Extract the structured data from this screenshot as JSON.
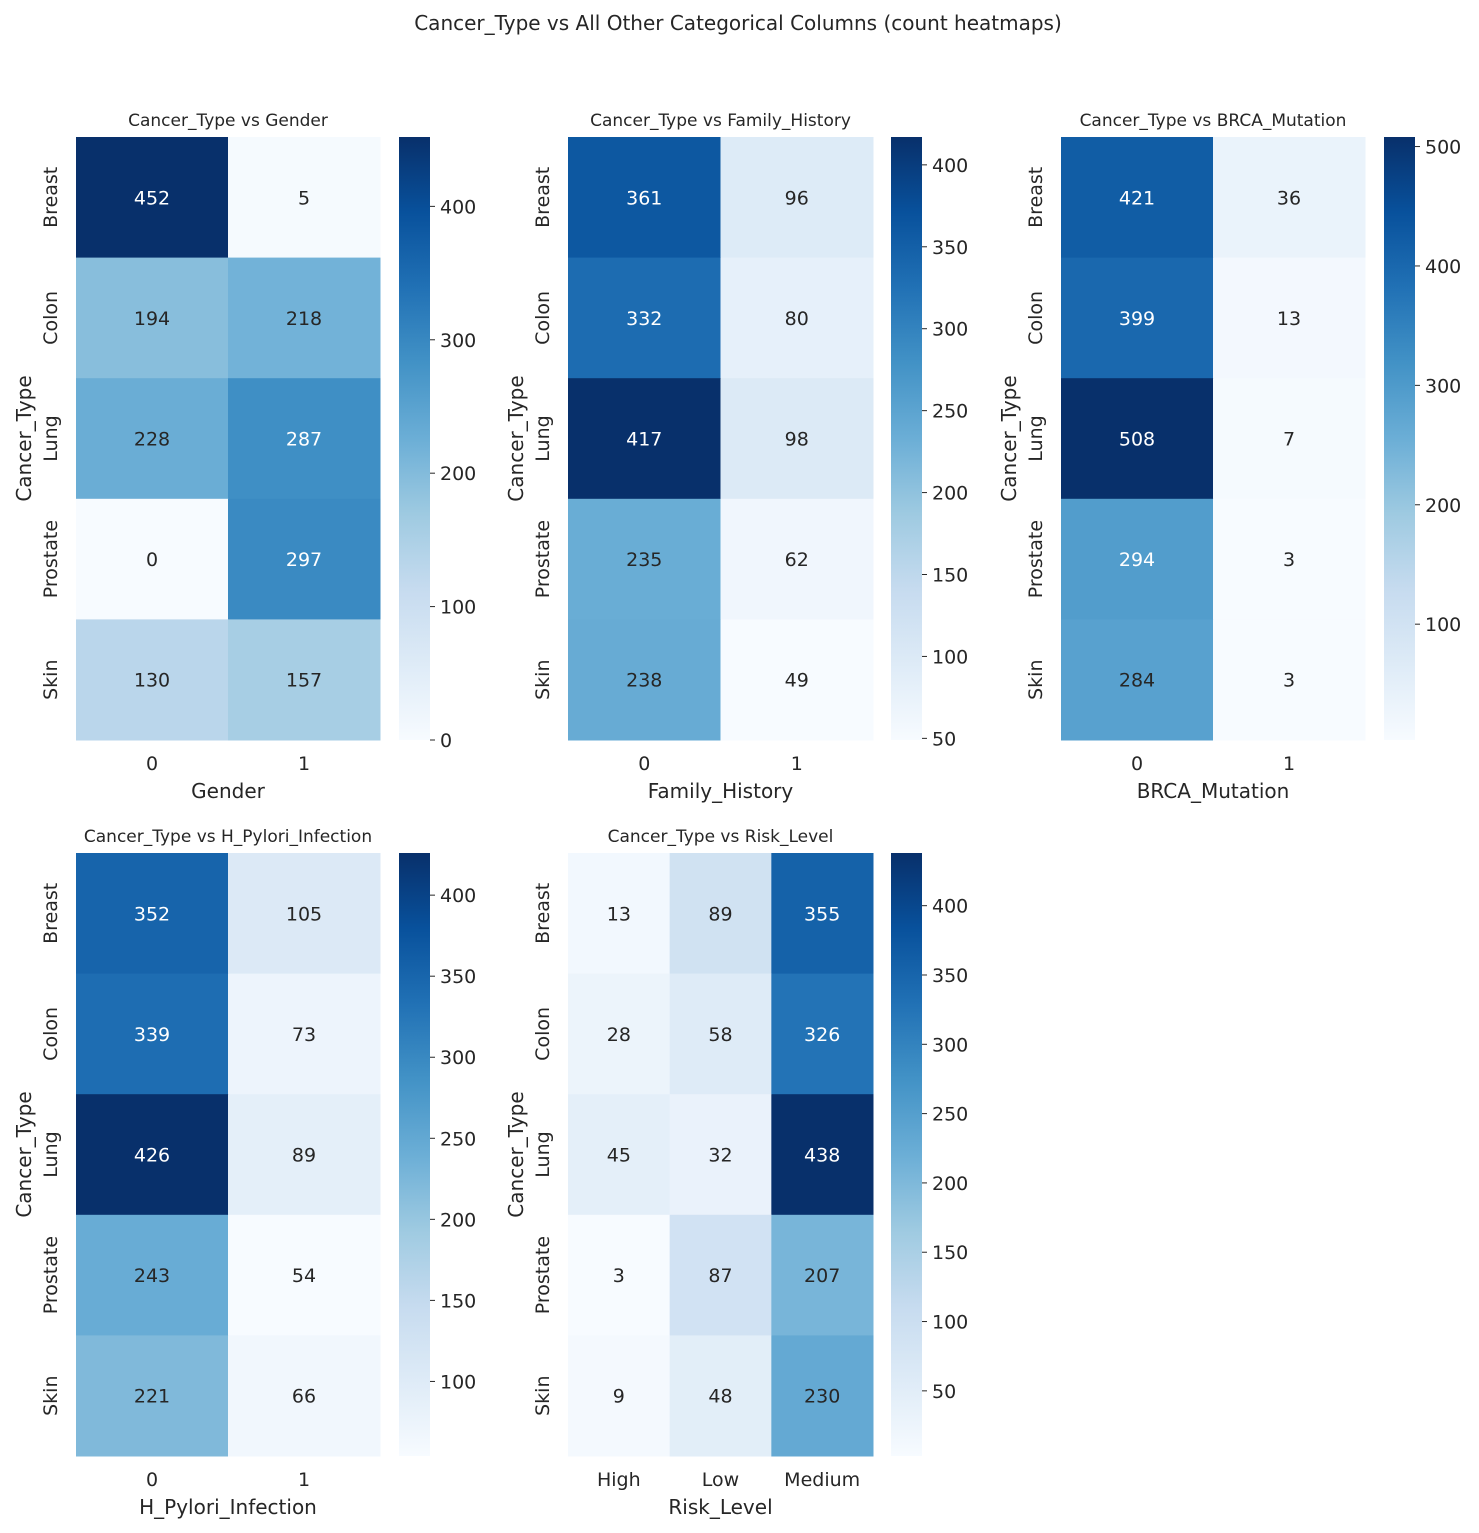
{
  "figure": {
    "title": "Cancer_Type vs All Other Categorical Columns (count heatmaps)"
  },
  "chart_data": [
    {
      "type": "heatmap",
      "title": "Cancer_Type vs Gender",
      "xlabel": "Gender",
      "ylabel": "Cancer_Type",
      "rows": [
        "Breast",
        "Colon",
        "Lung",
        "Prostate",
        "Skin"
      ],
      "cols": [
        "0",
        "1"
      ],
      "values": [
        [
          452,
          5
        ],
        [
          194,
          218
        ],
        [
          228,
          287
        ],
        [
          0,
          297
        ],
        [
          130,
          157
        ]
      ],
      "colormap": "Blues",
      "vmin": 0,
      "vmax": 452,
      "colorbar_ticks": [
        0,
        100,
        200,
        300,
        400
      ]
    },
    {
      "type": "heatmap",
      "title": "Cancer_Type vs Family_History",
      "xlabel": "Family_History",
      "ylabel": "Cancer_Type",
      "rows": [
        "Breast",
        "Colon",
        "Lung",
        "Prostate",
        "Skin"
      ],
      "cols": [
        "0",
        "1"
      ],
      "values": [
        [
          361,
          96
        ],
        [
          332,
          80
        ],
        [
          417,
          98
        ],
        [
          235,
          62
        ],
        [
          238,
          49
        ]
      ],
      "colormap": "Blues",
      "vmin": 49,
      "vmax": 417,
      "colorbar_ticks": [
        50,
        100,
        150,
        200,
        250,
        300,
        350,
        400
      ]
    },
    {
      "type": "heatmap",
      "title": "Cancer_Type vs BRCA_Mutation",
      "xlabel": "BRCA_Mutation",
      "ylabel": "Cancer_Type",
      "rows": [
        "Breast",
        "Colon",
        "Lung",
        "Prostate",
        "Skin"
      ],
      "cols": [
        "0",
        "1"
      ],
      "values": [
        [
          421,
          36
        ],
        [
          399,
          13
        ],
        [
          508,
          7
        ],
        [
          294,
          3
        ],
        [
          284,
          3
        ]
      ],
      "colormap": "Blues",
      "vmin": 3,
      "vmax": 508,
      "colorbar_ticks": [
        100,
        200,
        300,
        400,
        500
      ]
    },
    {
      "type": "heatmap",
      "title": "Cancer_Type vs H_Pylori_Infection",
      "xlabel": "H_Pylori_Infection",
      "ylabel": "Cancer_Type",
      "rows": [
        "Breast",
        "Colon",
        "Lung",
        "Prostate",
        "Skin"
      ],
      "cols": [
        "0",
        "1"
      ],
      "values": [
        [
          352,
          105
        ],
        [
          339,
          73
        ],
        [
          426,
          89
        ],
        [
          243,
          54
        ],
        [
          221,
          66
        ]
      ],
      "colormap": "Blues",
      "vmin": 54,
      "vmax": 426,
      "colorbar_ticks": [
        100,
        150,
        200,
        250,
        300,
        350,
        400
      ]
    },
    {
      "type": "heatmap",
      "title": "Cancer_Type vs Risk_Level",
      "xlabel": "Risk_Level",
      "ylabel": "Cancer_Type",
      "rows": [
        "Breast",
        "Colon",
        "Lung",
        "Prostate",
        "Skin"
      ],
      "cols": [
        "High",
        "Low",
        "Medium"
      ],
      "values": [
        [
          13,
          89,
          355
        ],
        [
          28,
          58,
          326
        ],
        [
          45,
          32,
          438
        ],
        [
          3,
          87,
          207
        ],
        [
          9,
          48,
          230
        ]
      ],
      "colormap": "Blues",
      "vmin": 3,
      "vmax": 438,
      "colorbar_ticks": [
        50,
        100,
        150,
        200,
        250,
        300,
        350,
        400
      ]
    }
  ]
}
